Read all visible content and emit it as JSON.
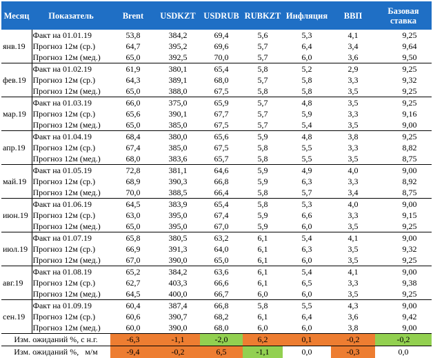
{
  "headers": {
    "month": "Месяц",
    "indicator": "Показатель",
    "brent": "Brent",
    "usdkzt": "USDKZT",
    "usdrub": "USDRUB",
    "rubkzt": "RUBKZT",
    "inflation": "Инфляция",
    "gdp": "ВВП",
    "rate_line1": "Базовая",
    "rate_line2": "ставка"
  },
  "months": [
    {
      "name": "янв.19",
      "rows": [
        {
          "label": "Факт на 01.01.19",
          "values": [
            "53,8",
            "384,2",
            "69,4",
            "5,6",
            "5,3",
            "4,1",
            "9,25"
          ]
        },
        {
          "label": "Прогноз 12м (ср.)",
          "values": [
            "64,7",
            "395,2",
            "69,6",
            "5,7",
            "6,4",
            "3,4",
            "9,64"
          ]
        },
        {
          "label": "Прогноз 12м (мед.)",
          "values": [
            "65,0",
            "392,5",
            "70,0",
            "5,7",
            "6,0",
            "3,6",
            "9,50"
          ]
        }
      ]
    },
    {
      "name": "фев.19",
      "rows": [
        {
          "label": "Факт на 01.02.19",
          "values": [
            "61,9",
            "380,1",
            "65,4",
            "5,8",
            "5,2",
            "2,9",
            "9,25"
          ]
        },
        {
          "label": "Прогноз 12м (ср.)",
          "values": [
            "64,3",
            "389,1",
            "68,0",
            "5,7",
            "5,8",
            "3,3",
            "9,32"
          ]
        },
        {
          "label": "Прогноз 12м (мед.)",
          "values": [
            "65,0",
            "388,0",
            "67,5",
            "5,8",
            "5,8",
            "3,5",
            "9,25"
          ]
        }
      ]
    },
    {
      "name": "мар.19",
      "rows": [
        {
          "label": "Факт на 01.03.19",
          "values": [
            "66,0",
            "375,0",
            "65,9",
            "5,7",
            "4,8",
            "3,5",
            "9,25"
          ]
        },
        {
          "label": "Прогноз 12м (ср.)",
          "values": [
            "65,6",
            "390,1",
            "67,7",
            "5,7",
            "5,9",
            "3,3",
            "9,16"
          ]
        },
        {
          "label": "Прогноз 12м (мед.)",
          "values": [
            "65,0",
            "385,0",
            "67,5",
            "5,7",
            "5,4",
            "3,5",
            "9,00"
          ]
        }
      ]
    },
    {
      "name": "апр.19",
      "rows": [
        {
          "label": "Факт на 01.04.19",
          "values": [
            "68,4",
            "380,0",
            "65,6",
            "5,9",
            "4,8",
            "3,8",
            "9,25"
          ]
        },
        {
          "label": "Прогноз 12м (ср.)",
          "values": [
            "67,4",
            "385,0",
            "67,5",
            "5,8",
            "5,5",
            "3,3",
            "8,82"
          ]
        },
        {
          "label": "Прогноз 12м (мед.)",
          "values": [
            "68,0",
            "383,6",
            "65,7",
            "5,8",
            "5,5",
            "3,5",
            "8,75"
          ]
        }
      ]
    },
    {
      "name": "май.19",
      "rows": [
        {
          "label": "Факт на 01.05.19",
          "values": [
            "72,8",
            "381,1",
            "64,6",
            "5,9",
            "4,9",
            "4,0",
            "9,00"
          ]
        },
        {
          "label": "Прогноз 12м (ср.)",
          "values": [
            "68,9",
            "390,3",
            "66,8",
            "5,9",
            "6,3",
            "3,3",
            "8,92"
          ]
        },
        {
          "label": "Прогноз 12м (мед.)",
          "values": [
            "70,0",
            "388,5",
            "66,4",
            "5,8",
            "5,7",
            "3,4",
            "8,75"
          ]
        }
      ]
    },
    {
      "name": "июн.19",
      "rows": [
        {
          "label": "Факт на 01.06.19",
          "values": [
            "64,5",
            "383,9",
            "65,4",
            "5,8",
            "5,3",
            "4,0",
            "9,00"
          ]
        },
        {
          "label": "Прогноз 12м (ср.)",
          "values": [
            "63,0",
            "395,0",
            "67,4",
            "5,9",
            "6,6",
            "3,3",
            "9,15"
          ]
        },
        {
          "label": "Прогноз 12м (мед.)",
          "values": [
            "65,0",
            "395,0",
            "67,0",
            "5,9",
            "6,0",
            "3,5",
            "9,25"
          ]
        }
      ]
    },
    {
      "name": "июл.19",
      "rows": [
        {
          "label": "Факт на 01.07.19",
          "values": [
            "65,8",
            "380,5",
            "63,2",
            "6,1",
            "5,4",
            "4,1",
            "9,00"
          ]
        },
        {
          "label": "Прогноз 12м (ср.)",
          "values": [
            "66,9",
            "391,3",
            "64,0",
            "6,1",
            "6,3",
            "3,5",
            "9,32"
          ]
        },
        {
          "label": "Прогноз 12м (мед.)",
          "values": [
            "67,0",
            "390,0",
            "65,0",
            "6,1",
            "6,0",
            "3,5",
            "9,25"
          ]
        }
      ]
    },
    {
      "name": "авг.19",
      "rows": [
        {
          "label": "Факт на 01.08.19",
          "values": [
            "65,2",
            "384,2",
            "63,6",
            "6,1",
            "5,4",
            "4,1",
            "9,00"
          ]
        },
        {
          "label": "Прогноз 12м (ср.)",
          "values": [
            "62,7",
            "403,3",
            "66,6",
            "6,1",
            "6,5",
            "3,3",
            "9,38"
          ]
        },
        {
          "label": "Прогноз 12м (мед.)",
          "values": [
            "64,5",
            "400,0",
            "66,7",
            "6,0",
            "6,0",
            "3,5",
            "9,25"
          ]
        }
      ]
    },
    {
      "name": "сен.19",
      "rows": [
        {
          "label": "Факт на 01.09.19",
          "values": [
            "60,4",
            "387,4",
            "66,8",
            "5,8",
            "5,5",
            "4,3",
            "9,00"
          ]
        },
        {
          "label": "Прогноз 12м (ср.)",
          "values": [
            "60,6",
            "390,7",
            "68,2",
            "6,1",
            "6,4",
            "3,6",
            "9,42"
          ]
        },
        {
          "label": "Прогноз 12м (мед.)",
          "values": [
            "60,0",
            "390,0",
            "68,0",
            "6,0",
            "6,0",
            "3,8",
            "9,00"
          ]
        }
      ]
    }
  ],
  "summary": [
    {
      "label": "Изм. ожиданий %, с н.г.",
      "values": [
        "-6,3",
        "-1,1",
        "-2,0",
        "6,2",
        "0,1",
        "-0,2",
        "-0,2"
      ],
      "colors": [
        "orange",
        "orange",
        "green",
        "orange",
        "orange",
        "orange",
        "green"
      ]
    },
    {
      "label": "Изм. ожиданий %,   м/м",
      "values": [
        "-9,4",
        "-0,2",
        "6,5",
        "-1,1",
        "0,0",
        "-0,3",
        "0,0"
      ],
      "colors": [
        "orange",
        "orange",
        "orange",
        "green",
        "none",
        "orange",
        "none"
      ]
    }
  ],
  "colors": {
    "header_bg": "#1f6fc5",
    "orange": "#ed7d31",
    "green": "#92d050"
  }
}
